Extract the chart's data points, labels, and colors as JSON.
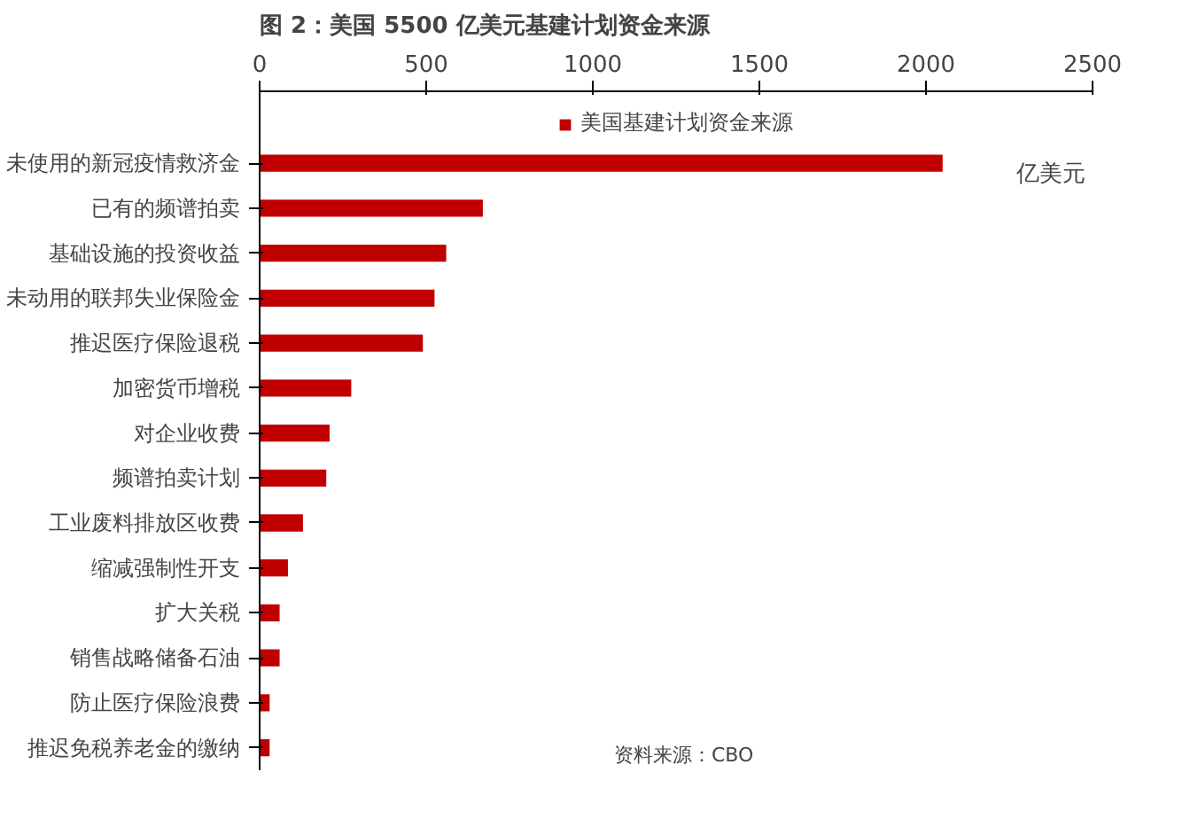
{
  "chart_data": {
    "type": "bar",
    "orientation": "horizontal",
    "title": "图 2：美国 5500 亿美元基建计划资金来源",
    "xlabel": "亿美元",
    "categories": [
      "未使用的新冠疫情救济金",
      "已有的频谱拍卖",
      "基础设施的投资收益",
      "未动用的联邦失业保险金",
      "推迟医疗保险退税",
      "加密货币增税",
      "对企业收费",
      "频谱拍卖计划",
      "工业废料排放区收费",
      "缩减强制性开支",
      "扩大关税",
      "销售战略储备石油",
      "防止医疗保险浪费",
      "推迟免税养老金的缴纳"
    ],
    "series": [
      {
        "name": "美国基建计划资金来源",
        "color": "#c00000",
        "values": [
          2050,
          670,
          560,
          525,
          490,
          275,
          210,
          200,
          130,
          85,
          60,
          60,
          30,
          30
        ]
      }
    ],
    "xlim": [
      0,
      2500
    ],
    "xticks": [
      0,
      500,
      1000,
      1500,
      2000,
      2500
    ],
    "grid": false,
    "legend": "top",
    "annotations": [
      "资料来源：CBO"
    ]
  }
}
